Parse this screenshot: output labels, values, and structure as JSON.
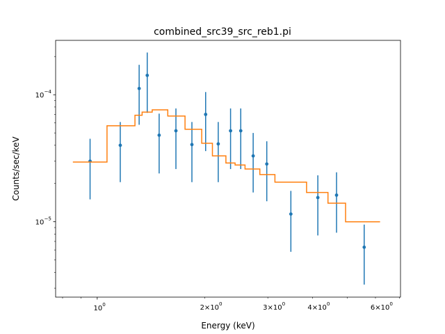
{
  "chart_data": {
    "type": "scatter",
    "title": "combined_src39_src_reb1.pi",
    "xlabel": "Energy (keV)",
    "ylabel": "Counts/sec/keV",
    "xscale": "log",
    "yscale": "log",
    "xlim": [
      0.765,
      7.05
    ],
    "ylim": [
      2.55e-06,
      0.000268
    ],
    "x_major_ticks": [
      {
        "value": 1,
        "base": "10",
        "exp": "0"
      }
    ],
    "x_minor_ticks": [
      {
        "value": 2,
        "mant": "2",
        "base": "10",
        "exp": "0"
      },
      {
        "value": 3,
        "mant": "3",
        "base": "10",
        "exp": "0"
      },
      {
        "value": 4,
        "mant": "4",
        "base": "10",
        "exp": "0"
      },
      {
        "value": 6,
        "mant": "6",
        "base": "10",
        "exp": "0"
      }
    ],
    "x_unlabeled_minor_ticks": [
      0.8,
      0.9,
      5,
      7
    ],
    "y_major_ticks": [
      {
        "value": 1e-05,
        "base": "10",
        "exp": "−5"
      },
      {
        "value": 0.0001,
        "base": "10",
        "exp": "−4"
      }
    ],
    "data_color": "#1f77b4",
    "model_color": "#ff7f0e",
    "series": [
      {
        "kind": "errorbar",
        "points": [
          {
            "x": 0.955,
            "y": 3e-05,
            "ylo": 1.5e-05,
            "yhi": 4.5e-05
          },
          {
            "x": 1.16,
            "y": 4e-05,
            "ylo": 2.05e-05,
            "yhi": 6.1e-05
          },
          {
            "x": 1.31,
            "y": 0.000112,
            "ylo": 5.8e-05,
            "yhi": 0.000172
          },
          {
            "x": 1.38,
            "y": 0.000142,
            "ylo": 7.2e-05,
            "yhi": 0.000215
          },
          {
            "x": 1.49,
            "y": 4.8e-05,
            "ylo": 2.4e-05,
            "yhi": 7.1e-05
          },
          {
            "x": 1.66,
            "y": 5.2e-05,
            "ylo": 2.6e-05,
            "yhi": 7.8e-05
          },
          {
            "x": 1.84,
            "y": 4.05e-05,
            "ylo": 2.05e-05,
            "yhi": 6.1e-05
          },
          {
            "x": 2.01,
            "y": 7e-05,
            "ylo": 3.6e-05,
            "yhi": 0.000105
          },
          {
            "x": 2.18,
            "y": 4.1e-05,
            "ylo": 2.05e-05,
            "yhi": 6.1e-05
          },
          {
            "x": 2.36,
            "y": 5.2e-05,
            "ylo": 2.6e-05,
            "yhi": 7.8e-05
          },
          {
            "x": 2.52,
            "y": 5.2e-05,
            "ylo": 2.6e-05,
            "yhi": 7.8e-05
          },
          {
            "x": 2.73,
            "y": 3.3e-05,
            "ylo": 1.7e-05,
            "yhi": 5e-05
          },
          {
            "x": 2.98,
            "y": 2.85e-05,
            "ylo": 1.45e-05,
            "yhi": 4.3e-05
          },
          {
            "x": 3.48,
            "y": 1.15e-05,
            "ylo": 5.8e-06,
            "yhi": 1.75e-05
          },
          {
            "x": 4.14,
            "y": 1.55e-05,
            "ylo": 7.8e-06,
            "yhi": 2.32e-05
          },
          {
            "x": 4.67,
            "y": 1.62e-05,
            "ylo": 8.2e-06,
            "yhi": 2.45e-05
          },
          {
            "x": 5.58,
            "y": 6.3e-06,
            "ylo": 3.2e-06,
            "yhi": 9.5e-06
          }
        ]
      },
      {
        "kind": "step",
        "edges": [
          0.855,
          1.065,
          1.275,
          1.335,
          1.425,
          1.575,
          1.76,
          1.96,
          2.1,
          2.29,
          2.43,
          2.59,
          2.85,
          3.14,
          3.85,
          4.42,
          4.95,
          6.18
        ],
        "values": [
          2.95e-05,
          5.7e-05,
          6.9e-05,
          7.3e-05,
          7.6e-05,
          6.8e-05,
          5.35e-05,
          4.15e-05,
          3.3e-05,
          2.9e-05,
          2.8e-05,
          2.6e-05,
          2.35e-05,
          2.05e-05,
          1.7e-05,
          1.4e-05,
          1e-05
        ]
      }
    ]
  }
}
